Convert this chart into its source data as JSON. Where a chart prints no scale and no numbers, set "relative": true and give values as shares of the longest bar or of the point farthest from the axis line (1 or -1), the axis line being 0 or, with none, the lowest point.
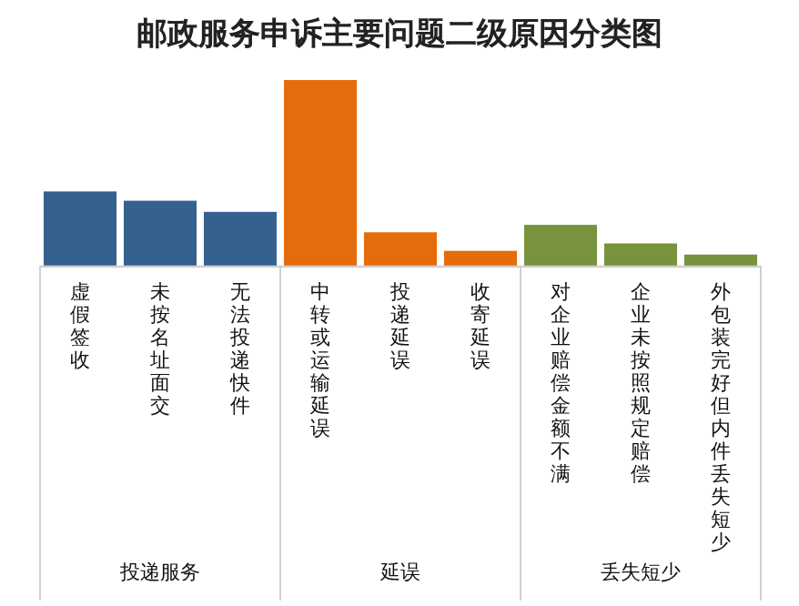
{
  "chart_data": {
    "type": "bar",
    "title": "邮政服务申诉主要问题二级原因分类图",
    "relative": true,
    "categories": [
      "虚假签收",
      "未按名址面交",
      "无法投递快件",
      "中转或运输延误",
      "投递延误",
      "收寄延误",
      "对企业赔偿金额不满",
      "企业未按照规定赔偿",
      "外包装完好但内件丢失短少"
    ],
    "series": [
      {
        "color": "#35618f",
        "values": [
          0.4,
          0.35,
          0.29,
          null,
          null,
          null,
          null,
          null,
          null
        ]
      },
      {
        "color": "#e46c0a",
        "values": [
          null,
          null,
          null,
          1,
          0.18,
          0.08,
          null,
          null,
          null
        ]
      },
      {
        "color": "#77933c",
        "values": [
          null,
          null,
          null,
          null,
          null,
          null,
          0.22,
          0.12,
          0.06
        ]
      }
    ],
    "annotations": [
      "投递服务",
      "延误",
      "丢失短少"
    ]
  }
}
